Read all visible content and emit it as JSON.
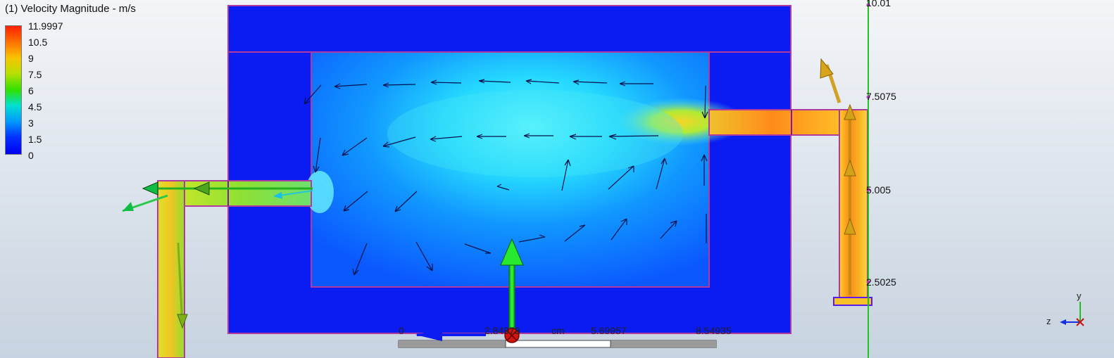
{
  "legend": {
    "title": "(1) Velocity Magnitude - m/s",
    "ticks": [
      "11.9997",
      "10.5",
      "9",
      "7.5",
      "6",
      "4.5",
      "3",
      "1.5",
      "0"
    ]
  },
  "y_axis": {
    "labels": [
      "10.01",
      "7.5075",
      "5.005",
      "2.5025"
    ]
  },
  "scale_bar": {
    "values": [
      "0",
      "2.84978",
      "5.69957",
      "8.54935"
    ],
    "unit": "cm"
  },
  "triad": {
    "y_label": "y",
    "z_label": "z"
  },
  "colors": {
    "background_top": "#f3f5f8",
    "background_bottom": "#c7d3e0",
    "solid_domain": "#0a1cf2",
    "outline": "#b03aa0",
    "axis_line": "#22c422",
    "hot": "#f39a12",
    "warm": "#c8df2a",
    "cool": "#49e6f4"
  }
}
